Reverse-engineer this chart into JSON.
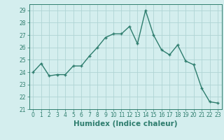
{
  "x": [
    0,
    1,
    2,
    3,
    4,
    5,
    6,
    7,
    8,
    9,
    10,
    11,
    12,
    13,
    14,
    15,
    16,
    17,
    18,
    19,
    20,
    21,
    22,
    23
  ],
  "y": [
    24.0,
    24.7,
    23.7,
    23.8,
    23.8,
    24.5,
    24.5,
    25.3,
    26.0,
    26.8,
    27.1,
    27.1,
    27.7,
    26.3,
    29.0,
    27.0,
    25.8,
    25.4,
    26.2,
    24.9,
    24.6,
    22.7,
    21.6,
    21.5
  ],
  "line_color": "#2e7d6e",
  "marker": "+",
  "marker_size": 3,
  "bg_color": "#d4eeee",
  "grid_color": "#b0d4d4",
  "xlabel": "Humidex (Indice chaleur)",
  "ylim": [
    21,
    29.5
  ],
  "xlim": [
    -0.5,
    23.5
  ],
  "yticks": [
    21,
    22,
    23,
    24,
    25,
    26,
    27,
    28,
    29
  ],
  "xticks": [
    0,
    1,
    2,
    3,
    4,
    5,
    6,
    7,
    8,
    9,
    10,
    11,
    12,
    13,
    14,
    15,
    16,
    17,
    18,
    19,
    20,
    21,
    22,
    23
  ],
  "tick_label_fontsize": 5.5,
  "xlabel_fontsize": 7.5,
  "line_width": 1.0
}
